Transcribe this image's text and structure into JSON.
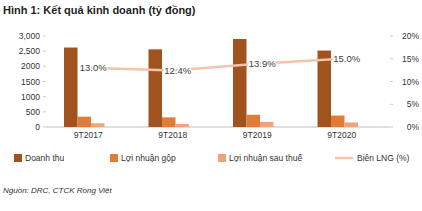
{
  "chart_data": {
    "type": "bar",
    "title": "Hình 1: Kết quả kinh doanh (tỷ đồng)",
    "source": "Nguồn: DRC, CTCK Rồng Việt",
    "categories": [
      "9T2017",
      "9T2018",
      "9T2019",
      "9T2020"
    ],
    "series": [
      {
        "name": "Doanh thu",
        "color": "#a0521f",
        "values": [
          2620,
          2560,
          2900,
          2520
        ]
      },
      {
        "name": "Lợi nhuận gộp",
        "color": "#e07b39",
        "values": [
          340,
          317,
          403,
          378
        ]
      },
      {
        "name": "Lợi nhuận sau thuế",
        "color": "#f0a47c",
        "values": [
          125,
          100,
          170,
          150
        ]
      },
      {
        "name": "Biên LNG (%)",
        "color": "#f4c3ab",
        "type": "line",
        "axis": "y2",
        "data_labels": true,
        "values": [
          13.0,
          12.4,
          13.9,
          15.0
        ],
        "value_labels": [
          "13.0%",
          "12.4%",
          "13.9%",
          "15.0%"
        ]
      }
    ],
    "ylim": [
      0,
      3000
    ],
    "yticks": [
      0,
      500,
      1000,
      1500,
      2000,
      {
        "value": 2500,
        "label": "2,500"
      },
      {
        "value": 3000,
        "label": "3,000"
      }
    ],
    "y2lim": [
      0,
      20
    ],
    "y2ticks": [
      {
        "value": 0,
        "label": "0%"
      },
      {
        "value": 5,
        "label": "5%"
      },
      {
        "value": 10,
        "label": "10%"
      },
      {
        "value": 15,
        "label": "15%"
      },
      {
        "value": 20,
        "label": "20%"
      }
    ],
    "legend": "bottom",
    "grid": false
  }
}
